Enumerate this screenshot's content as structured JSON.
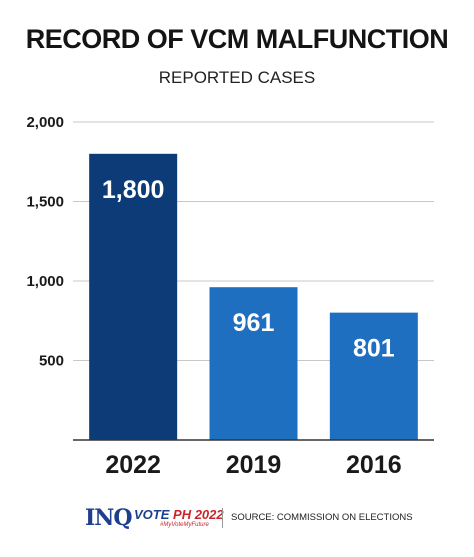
{
  "chart_data": {
    "type": "bar",
    "title": "RECORD OF VCM MALFUNCTION",
    "subtitle": "REPORTED CASES",
    "categories": [
      "2022",
      "2019",
      "2016"
    ],
    "values": [
      1800,
      961,
      801
    ],
    "data_labels": [
      "1,800",
      "961",
      "801"
    ],
    "yticks": [
      500,
      1000,
      1500,
      2000
    ],
    "ytick_labels": [
      "500",
      "1,000",
      "1,500",
      "2,000"
    ],
    "ylim": [
      0,
      2000
    ],
    "grid": true,
    "colors": [
      "#0d3b78",
      "#1f6fc1",
      "#1f6fc1"
    ]
  },
  "footer": {
    "brand": "INQ",
    "vote_label": "VOTE",
    "vote_year": "PH 2022",
    "vote_tagline": "#MyVoteMyFuture",
    "source": "SOURCE: COMMISSION ON ELECTIONS"
  }
}
